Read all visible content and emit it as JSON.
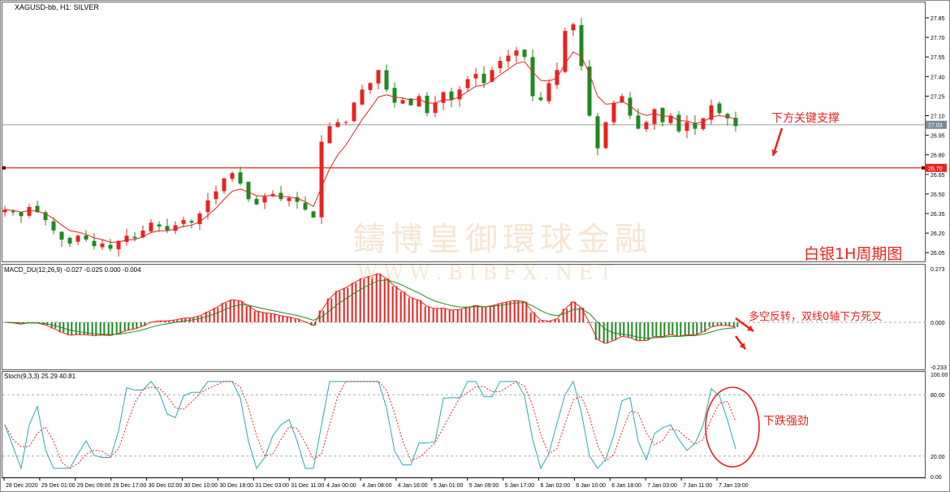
{
  "window": {
    "title": "XAGUSD-bb, H1:  SILVER"
  },
  "macd": {
    "label": "MACD_DU(12,26,9) -0.027 -0.025 0.000 -0.004",
    "ticks": [
      "0.273",
      "0.000",
      "-0.233"
    ]
  },
  "stoch": {
    "label": "Stoch(9,3,3) 25.29 40.81",
    "ticks": [
      "100.00",
      "80.00",
      "20.00",
      "0.00"
    ]
  },
  "price_axis": {
    "ticks": [
      "27.85",
      "27.70",
      "27.55",
      "27.40",
      "27.25",
      "27.10",
      "26.95",
      "26.80",
      "26.65",
      "26.50",
      "26.35",
      "26.20",
      "26.05"
    ],
    "current_price": "27.03",
    "support_price": "26.70"
  },
  "time_axis": [
    "28 Dec 2020",
    "29 Dec 01:00",
    "29 Dec 09:00",
    "29 Dec 17:00",
    "30 Dec 02:00",
    "30 Dec 10:00",
    "30 Dec 18:00",
    "31 Dec 03:00",
    "31 Dec 11:00",
    "4 Jan 00:00",
    "4 Jan 08:00",
    "4 Jan 16:00",
    "5 Jan 01:00",
    "5 Jan 09:00",
    "5 Jan 17:00",
    "6 Jan 02:00",
    "6 Jan 10:00",
    "6 Jan 18:00",
    "7 Jan 03:00",
    "7 Jan 11:00",
    "7 Jan 19:00"
  ],
  "annotations": {
    "support": "下方关键支撑",
    "chart_title": "白银1H周期图",
    "macd_note": "多空反转，双线0轴下方死叉",
    "stoch_note": "下跌强劲"
  },
  "watermark": {
    "cn": "鑄博皇御環球金融",
    "en": "W W W . B I B F X . N E T"
  },
  "colors": {
    "bull": "#e8231f",
    "bear": "#1e8a1e",
    "ma": "#e8231f",
    "macd_signal": "#1e8a1e",
    "stoch_main": "#2aa8b8",
    "stoch_signal": "#e8231f",
    "support_line": "#e8231f",
    "current_line": "#9aa0a6"
  },
  "chart_data": {
    "type": "candlestick",
    "symbol": "XAGUSD-bb",
    "timeframe": "H1",
    "ylim": [
      26.0,
      27.9
    ],
    "closes": [
      26.38,
      26.36,
      26.33,
      26.4,
      26.36,
      26.3,
      26.22,
      26.15,
      26.12,
      26.18,
      26.15,
      26.1,
      26.12,
      26.08,
      26.14,
      26.18,
      26.16,
      26.22,
      26.28,
      26.25,
      26.22,
      26.26,
      26.3,
      26.28,
      26.35,
      26.45,
      26.52,
      26.62,
      26.66,
      26.58,
      26.46,
      26.42,
      26.48,
      26.5,
      26.46,
      26.47,
      26.44,
      26.38,
      26.32,
      26.9,
      27.02,
      27.05,
      27.05,
      27.2,
      27.3,
      27.35,
      27.45,
      27.3,
      27.2,
      27.22,
      27.18,
      27.25,
      27.12,
      27.2,
      27.28,
      27.22,
      27.3,
      27.38,
      27.42,
      27.35,
      27.45,
      27.52,
      27.56,
      27.6,
      27.55,
      27.25,
      27.22,
      27.35,
      27.45,
      27.75,
      27.8,
      27.48,
      27.1,
      26.85,
      27.05,
      27.2,
      27.25,
      27.1,
      27.0,
      27.05,
      27.15,
      27.05,
      27.1,
      26.98,
      27.05,
      27.0,
      27.08,
      27.18,
      27.12,
      27.08,
      27.02
    ],
    "horizontal_lines": [
      26.7,
      27.03
    ]
  }
}
